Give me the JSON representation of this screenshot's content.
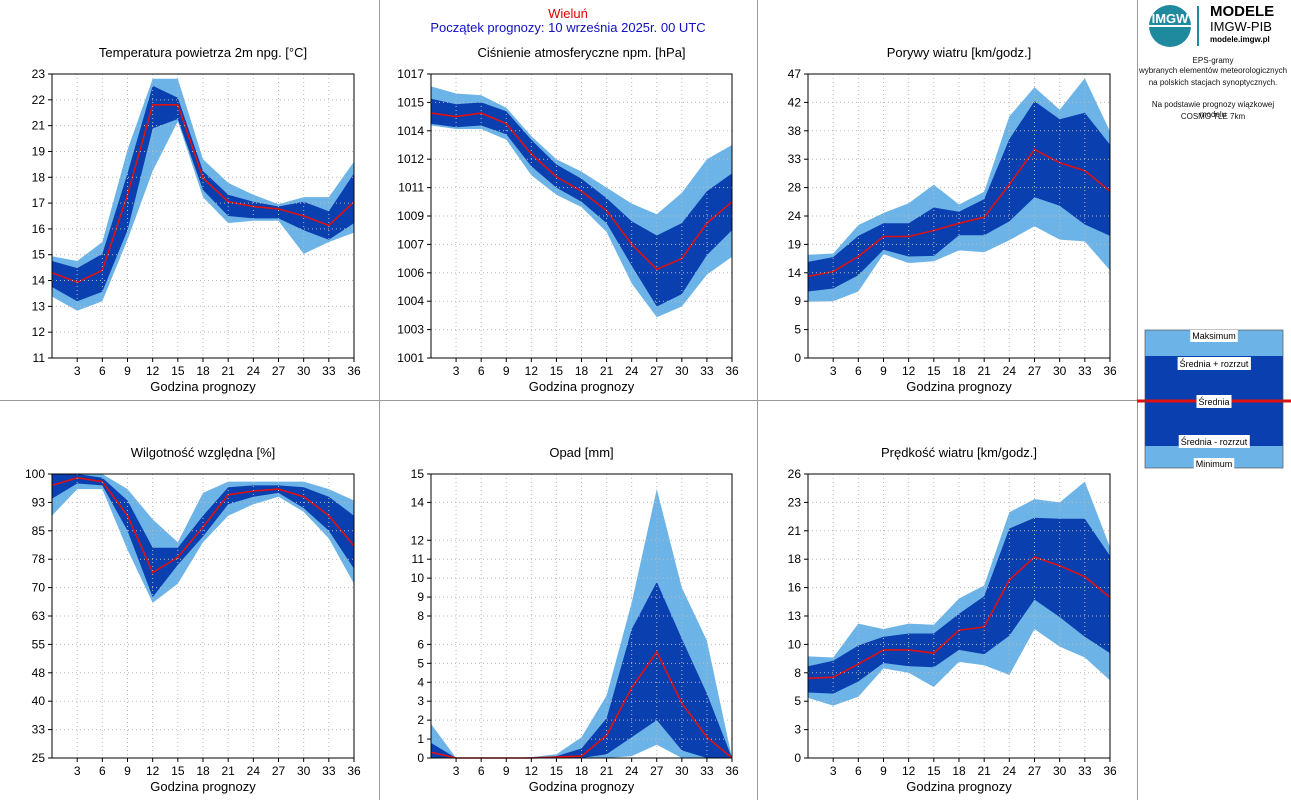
{
  "header": {
    "station": "Wieluń",
    "forecast_start": "Początek prognozy: 10 września 2025r. 00 UTC"
  },
  "branding": {
    "logo_short": "IMGW",
    "logo_title": "MODELE",
    "logo_org": "IMGW-PIB",
    "logo_url": "modele.imgw.pl"
  },
  "info": {
    "line1": "EPS-gramy",
    "line2": "wybranych elementów meteorologicznych",
    "line3": "na polskich stacjach  synoptycznych.",
    "line4": "Na podstawie prognozy wiązkowej modelu",
    "line5": "COSMO TLE 7km"
  },
  "legend": {
    "max": "Maksimum",
    "mean_plus": "Średnia + rozrzut",
    "mean": "Średnia",
    "mean_minus": "Średnia - rozrzut",
    "min": "Minimum"
  },
  "colors": {
    "light_band": "#6cb4e8",
    "dark_band": "#0a3fb0",
    "mean_line": "#e01010",
    "grid": "#b8b8b8",
    "title_red": "#e00000",
    "title_blue": "#1010c0"
  },
  "chart_data": [
    {
      "type": "area",
      "title": "Temperatura powietrza 2m npg. [°C]",
      "xlabel": "Godzina prognozy",
      "ylabel": "",
      "x": [
        0,
        3,
        6,
        9,
        12,
        15,
        18,
        21,
        24,
        27,
        30,
        33,
        36
      ],
      "x_ticks": [
        "3",
        "6",
        "9",
        "12",
        "15",
        "18",
        "21",
        "24",
        "27",
        "30",
        "33",
        "36"
      ],
      "ylim": [
        11,
        23
      ],
      "y_ticks": [
        "11",
        "12",
        "13",
        "14",
        "15",
        "16",
        "17",
        "18",
        "19",
        "21",
        "22",
        "23"
      ],
      "grid": true,
      "series": [
        {
          "name": "Maksimum",
          "values": [
            15.3,
            15.1,
            15.9,
            19.8,
            22.8,
            22.8,
            19.4,
            18.4,
            17.9,
            17.5,
            17.8,
            17.8,
            19.3
          ]
        },
        {
          "name": "Średnia + rozrzut",
          "values": [
            15.1,
            14.8,
            15.4,
            18.8,
            22.5,
            22.0,
            18.9,
            17.9,
            17.6,
            17.4,
            17.6,
            17.2,
            18.8
          ]
        },
        {
          "name": "Średnia",
          "values": [
            14.6,
            14.2,
            14.7,
            17.9,
            21.7,
            21.7,
            18.6,
            17.6,
            17.4,
            17.3,
            17.0,
            16.6,
            17.6
          ]
        },
        {
          "name": "Średnia - rozrzut",
          "values": [
            14.0,
            13.4,
            13.8,
            16.4,
            20.7,
            21.1,
            18.1,
            17.0,
            16.9,
            16.9,
            16.4,
            16.0,
            16.7
          ]
        },
        {
          "name": "Minimum",
          "values": [
            13.6,
            13.0,
            13.4,
            16.0,
            18.9,
            21.0,
            17.8,
            16.7,
            16.8,
            16.8,
            15.4,
            15.9,
            16.3
          ]
        }
      ]
    },
    {
      "type": "area",
      "title": "Ciśnienie atmosferyczne npm. [hPa]",
      "xlabel": "Godzina prognozy",
      "ylabel": "",
      "x": [
        0,
        3,
        6,
        9,
        12,
        15,
        18,
        21,
        24,
        27,
        30,
        33,
        36
      ],
      "x_ticks": [
        "3",
        "6",
        "9",
        "12",
        "15",
        "18",
        "21",
        "24",
        "27",
        "30",
        "33",
        "36"
      ],
      "ylim": [
        1001,
        1017
      ],
      "y_ticks": [
        "1001",
        "1003",
        "1004",
        "1006",
        "1007",
        "1009",
        "1011",
        "1012",
        "1014",
        "1015",
        "1017"
      ],
      "grid": true,
      "series": [
        {
          "name": "Maksimum",
          "values": [
            1016.3,
            1015.9,
            1015.8,
            1015.1,
            1013.5,
            1012.2,
            1011.5,
            1010.6,
            1009.7,
            1009.1,
            1010.3,
            1012.2,
            1013.0
          ]
        },
        {
          "name": "Średnia + rozrzut",
          "values": [
            1015.6,
            1015.3,
            1015.4,
            1014.9,
            1013.3,
            1011.9,
            1011.1,
            1010.0,
            1008.7,
            1007.9,
            1008.6,
            1010.4,
            1011.4
          ]
        },
        {
          "name": "Średnia",
          "values": [
            1014.8,
            1014.6,
            1014.8,
            1014.2,
            1012.5,
            1011.2,
            1010.4,
            1009.3,
            1007.4,
            1006.0,
            1006.6,
            1008.6,
            1009.8
          ]
        },
        {
          "name": "Średnia - rozrzut",
          "values": [
            1014.2,
            1014.0,
            1014.1,
            1013.6,
            1011.8,
            1010.6,
            1009.8,
            1008.6,
            1006.2,
            1003.9,
            1004.6,
            1006.8,
            1008.2
          ]
        },
        {
          "name": "Minimum",
          "values": [
            1014.1,
            1013.9,
            1013.9,
            1013.3,
            1011.3,
            1010.2,
            1009.5,
            1008.1,
            1005.2,
            1003.3,
            1003.9,
            1005.7,
            1006.7
          ]
        }
      ]
    },
    {
      "type": "area",
      "title": "Porywy wiatru [km/godz.]",
      "xlabel": "Godzina prognozy",
      "ylabel": "",
      "x": [
        0,
        3,
        6,
        9,
        12,
        15,
        18,
        21,
        24,
        27,
        30,
        33,
        36
      ],
      "x_ticks": [
        "3",
        "6",
        "9",
        "12",
        "15",
        "18",
        "21",
        "24",
        "27",
        "30",
        "33",
        "36"
      ],
      "ylim": [
        0,
        47
      ],
      "y_ticks": [
        "0",
        "5",
        "9",
        "14",
        "19",
        "24",
        "28",
        "33",
        "38",
        "42",
        "47"
      ],
      "grid": true,
      "series": [
        {
          "name": "Maksimum",
          "values": [
            17.1,
            17.3,
            22.0,
            24.0,
            25.6,
            28.7,
            25.4,
            27.5,
            40.0,
            44.8,
            41.1,
            46.3,
            37.5
          ]
        },
        {
          "name": "Średnia + rozrzut",
          "values": [
            15.9,
            16.7,
            20.2,
            22.3,
            22.3,
            24.9,
            24.2,
            26.3,
            36.2,
            42.5,
            39.5,
            40.6,
            35.3
          ]
        },
        {
          "name": "Średnia",
          "values": [
            13.5,
            14.3,
            16.8,
            20.1,
            20.1,
            21.1,
            22.3,
            23.3,
            28.7,
            34.5,
            32.3,
            31.0,
            27.6
          ]
        },
        {
          "name": "Średnia - rozrzut",
          "values": [
            11.0,
            11.5,
            13.7,
            17.9,
            16.8,
            16.9,
            20.3,
            20.3,
            22.6,
            26.6,
            25.2,
            22.1,
            20.2
          ]
        },
        {
          "name": "Minimum",
          "values": [
            9.3,
            9.4,
            11.0,
            17.2,
            15.7,
            16.0,
            17.8,
            17.5,
            19.5,
            21.8,
            19.6,
            19.3,
            14.5
          ]
        }
      ]
    },
    {
      "type": "area",
      "title": "Wilgotność względna [%]",
      "xlabel": "Godzina prognozy",
      "ylabel": "",
      "x": [
        0,
        3,
        6,
        9,
        12,
        15,
        18,
        21,
        24,
        27,
        30,
        33,
        36
      ],
      "x_ticks": [
        "3",
        "6",
        "9",
        "12",
        "15",
        "18",
        "21",
        "24",
        "27",
        "30",
        "33",
        "36"
      ],
      "ylim": [
        25,
        100
      ],
      "y_ticks": [
        "25",
        "33",
        "40",
        "48",
        "55",
        "63",
        "70",
        "78",
        "85",
        "93",
        "100"
      ],
      "grid": true,
      "series": [
        {
          "name": "Maksimum",
          "values": [
            100,
            100,
            100,
            96,
            88,
            82,
            95,
            98,
            98,
            98,
            98,
            96,
            93
          ]
        },
        {
          "name": "Średnia + rozrzut",
          "values": [
            100,
            100,
            99,
            93,
            80.5,
            80.5,
            89,
            96.5,
            97,
            97,
            96.5,
            94,
            89
          ]
        },
        {
          "name": "Średnia",
          "values": [
            97,
            99,
            98,
            89,
            74,
            78,
            86,
            94.5,
            95.5,
            96,
            94,
            89,
            81
          ]
        },
        {
          "name": "Średnia - rozrzut",
          "values": [
            93.5,
            97.5,
            97,
            85,
            67.5,
            76,
            83.5,
            92,
            94,
            95,
            91,
            85,
            75
          ]
        },
        {
          "name": "Minimum",
          "values": [
            89,
            96,
            96,
            80,
            66,
            71,
            82,
            89,
            92,
            94,
            90,
            83,
            71
          ]
        }
      ]
    },
    {
      "type": "area",
      "title": "Opad [mm]",
      "xlabel": "Godzina prognozy",
      "ylabel": "",
      "x": [
        0,
        3,
        6,
        9,
        12,
        15,
        18,
        21,
        24,
        27,
        30,
        33,
        36
      ],
      "x_ticks": [
        "3",
        "6",
        "9",
        "12",
        "15",
        "18",
        "21",
        "24",
        "27",
        "30",
        "33",
        "36"
      ],
      "ylim": [
        0,
        15
      ],
      "y_ticks": [
        "0",
        "1",
        "2",
        "3",
        "4",
        "5",
        "6",
        "8",
        "9",
        "10",
        "11",
        "12",
        "14",
        "15"
      ],
      "y_tick_values": [
        0,
        1,
        2,
        3,
        4,
        5,
        6,
        7.5,
        8.5,
        9.5,
        10.5,
        11.5,
        13.5,
        15
      ],
      "grid": true,
      "series": [
        {
          "name": "Maksimum",
          "values": [
            1.8,
            0,
            0,
            0,
            0.05,
            0.2,
            1.1,
            3.3,
            8.2,
            14.2,
            9.0,
            6.2,
            0
          ]
        },
        {
          "name": "Średnia + rozrzut",
          "values": [
            0.8,
            0,
            0,
            0,
            0,
            0.1,
            0.5,
            2.1,
            6.8,
            9.3,
            6.3,
            3.4,
            0
          ]
        },
        {
          "name": "Średnia",
          "values": [
            0.3,
            0,
            0,
            0,
            0,
            0.05,
            0.1,
            1.2,
            3.7,
            5.6,
            2.9,
            1.1,
            0
          ]
        },
        {
          "name": "Średnia - rozrzut",
          "values": [
            0,
            0,
            0,
            0,
            0,
            0,
            0,
            0.2,
            1.1,
            2.0,
            0.4,
            0,
            0
          ]
        },
        {
          "name": "Minimum",
          "values": [
            0,
            0,
            0,
            0,
            0,
            0,
            0,
            0,
            0.1,
            0.7,
            0,
            0,
            0
          ]
        }
      ]
    },
    {
      "type": "area",
      "title": "Prędkość wiatru [km/godz.]",
      "xlabel": "Godzina prognozy",
      "ylabel": "",
      "x": [
        0,
        3,
        6,
        9,
        12,
        15,
        18,
        21,
        24,
        27,
        30,
        33,
        36
      ],
      "x_ticks": [
        "3",
        "6",
        "9",
        "12",
        "15",
        "18",
        "21",
        "24",
        "27",
        "30",
        "33",
        "36"
      ],
      "ylim": [
        0,
        26
      ],
      "y_ticks": [
        "0",
        "3",
        "5",
        "8",
        "10",
        "13",
        "16",
        "18",
        "21",
        "23",
        "26"
      ],
      "y_tick_values": [
        0,
        2.6,
        5.2,
        7.8,
        10.4,
        13,
        15.6,
        18.2,
        20.8,
        23.4,
        26
      ],
      "grid": true,
      "series": [
        {
          "name": "Maksimum",
          "values": [
            9.3,
            9.2,
            12.3,
            11.8,
            12.3,
            12.2,
            14.6,
            15.8,
            22.5,
            23.7,
            23.4,
            25.3,
            19.3
          ]
        },
        {
          "name": "Średnia + rozrzut",
          "values": [
            8.4,
            8.9,
            10.3,
            11.1,
            11.4,
            11.4,
            13.2,
            14.8,
            21.0,
            22.0,
            21.9,
            21.9,
            18.5
          ]
        },
        {
          "name": "Średnia",
          "values": [
            7.3,
            7.4,
            8.6,
            9.9,
            9.9,
            9.6,
            11.7,
            12.0,
            16.3,
            18.4,
            17.6,
            16.6,
            14.7
          ]
        },
        {
          "name": "Średnia - rozrzut",
          "values": [
            6.0,
            5.9,
            7.0,
            8.7,
            8.4,
            8.3,
            9.9,
            9.5,
            11.2,
            14.5,
            12.9,
            11.1,
            9.6
          ]
        },
        {
          "name": "Minimum",
          "values": [
            5.5,
            4.8,
            5.6,
            8.2,
            7.8,
            6.5,
            8.8,
            8.5,
            7.6,
            11.8,
            10.2,
            9.2,
            7.1
          ]
        }
      ]
    }
  ]
}
